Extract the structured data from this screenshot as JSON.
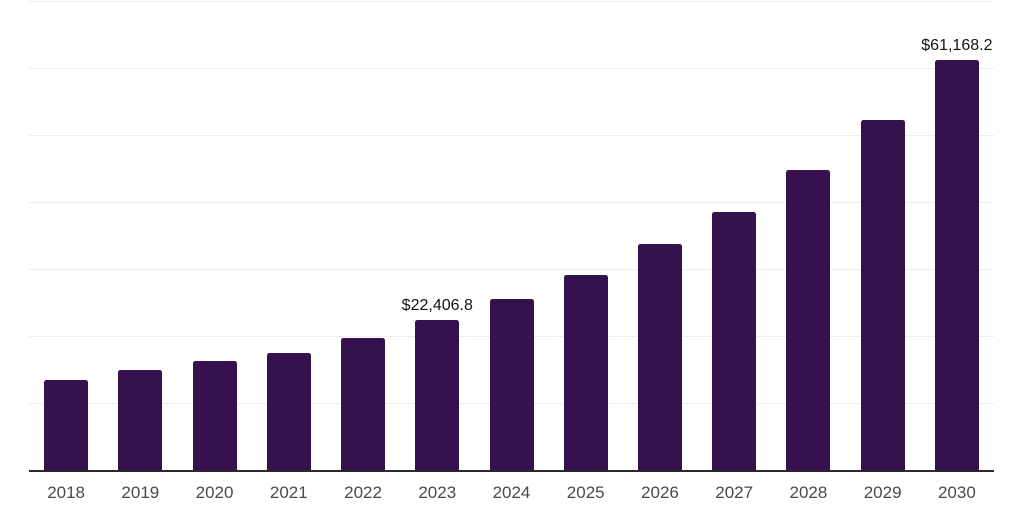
{
  "style": {
    "background_color": "#ffffff",
    "bar_color": "#35114e",
    "gridline_color": "#ededed",
    "axis_line_color": "#2a2a2a",
    "x_tick_color": "#4a4a4a",
    "data_label_color": "#141414"
  },
  "chart_data": {
    "type": "bar",
    "title": "",
    "xlabel": "",
    "ylabel": "",
    "categories": [
      "2018",
      "2019",
      "2020",
      "2021",
      "2022",
      "2023",
      "2024",
      "2025",
      "2026",
      "2027",
      "2028",
      "2029",
      "2030"
    ],
    "values": [
      13400,
      14900,
      16250,
      17500,
      19700,
      22406.8,
      25500,
      29100,
      33700,
      38500,
      44850,
      52250,
      61168.2
    ],
    "data_labels": [
      {
        "category": "2023",
        "text": "$22,406.8"
      },
      {
        "category": "2030",
        "text": "$61,168.2"
      }
    ],
    "ylim": [
      0,
      70000
    ],
    "grid": "horizontal",
    "grid_interval": 10000,
    "y_axis_tick_labels": "none",
    "legend": "none",
    "value_prefix": "$"
  }
}
